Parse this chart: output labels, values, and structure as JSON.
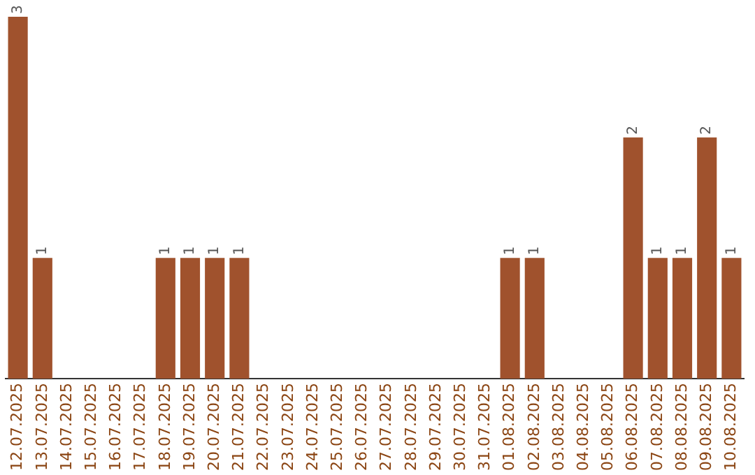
{
  "chart_data": {
    "type": "bar",
    "categories": [
      "12.07.2025",
      "13.07.2025",
      "14.07.2025",
      "15.07.2025",
      "16.07.2025",
      "17.07.2025",
      "18.07.2025",
      "19.07.2025",
      "20.07.2025",
      "21.07.2025",
      "22.07.2025",
      "23.07.2025",
      "24.07.2025",
      "25.07.2025",
      "26.07.2025",
      "27.07.2025",
      "28.07.2025",
      "29.07.2025",
      "30.07.2025",
      "31.07.2025",
      "01.08.2025",
      "02.08.2025",
      "03.08.2025",
      "04.08.2025",
      "05.08.2025",
      "06.08.2025",
      "07.08.2025",
      "08.08.2025",
      "09.08.2025",
      "10.08.2025"
    ],
    "values": [
      3,
      1,
      0,
      0,
      0,
      0,
      1,
      1,
      1,
      1,
      0,
      0,
      0,
      0,
      0,
      0,
      0,
      0,
      0,
      0,
      1,
      1,
      0,
      0,
      0,
      2,
      1,
      1,
      2,
      1
    ],
    "value_labels": [
      "3",
      "1",
      null,
      null,
      null,
      null,
      "1",
      "1",
      "1",
      "1",
      null,
      null,
      null,
      null,
      null,
      null,
      null,
      null,
      null,
      null,
      "1",
      "1",
      null,
      null,
      null,
      "2",
      "1",
      "1",
      "2",
      "1"
    ],
    "color": "#a0522d",
    "grid": false,
    "legend": false
  }
}
